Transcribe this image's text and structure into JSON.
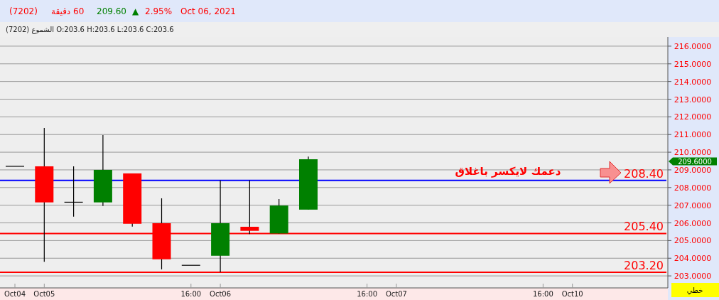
{
  "chart_data": {
    "type": "candlestick",
    "title": [
      "(7202)",
      "60 دقيقة",
      "209.60",
      "▲",
      "2.95%",
      "Oct 06, 2021"
    ],
    "subtitle": "الشموع (7202) O:203.6  H:203.6  L:203.6  C:203.6",
    "categories": [
      "Oct04",
      "Oct05",
      null,
      null,
      null,
      null,
      "16:00",
      "Oct06",
      null,
      null,
      null,
      null,
      "16:00",
      "Oct07",
      null,
      null,
      null,
      null,
      "16:00",
      "Oct10",
      null,
      null,
      null
    ],
    "ohlc": [
      [
        209.2,
        209.2,
        209.2,
        209.2
      ],
      [
        209.2,
        211.37,
        203.8,
        207.16
      ],
      [
        207.17,
        209.2,
        206.35,
        207.17
      ],
      [
        207.16,
        210.97,
        206.96,
        209.0
      ],
      [
        208.8,
        208.8,
        205.79,
        205.95
      ],
      [
        205.98,
        207.39,
        203.37,
        203.94
      ],
      [
        203.6,
        203.6,
        203.6,
        203.6
      ],
      [
        204.14,
        208.4,
        203.2,
        205.98
      ],
      [
        205.78,
        208.4,
        205.37,
        205.55
      ],
      [
        205.4,
        207.35,
        205.4,
        206.98
      ],
      [
        206.75,
        209.75,
        206.75,
        209.6
      ],
      null,
      null,
      null,
      null,
      null,
      null,
      null,
      null,
      null,
      null,
      null,
      null
    ],
    "colors": [
      "#000000",
      "#ff0000",
      "#000000",
      "#008000",
      "#ff0000",
      "#ff0000",
      "#000000",
      "#008000",
      "#ff0000",
      "#008000",
      "#008000",
      null,
      null,
      null,
      null,
      null,
      null,
      null,
      null,
      null,
      null,
      null,
      null
    ],
    "ylim": [
      202.32,
      216.52
    ],
    "yticks": [
      {
        "value": 203,
        "label": "203.0000"
      },
      {
        "value": 204,
        "label": "204.0000"
      },
      {
        "value": 205,
        "label": "205.0000"
      },
      {
        "value": 206,
        "label": "206.0000"
      },
      {
        "value": 207,
        "label": "207.0000"
      },
      {
        "value": 208,
        "label": "208.0000"
      },
      {
        "value": 209,
        "label": "209.0000"
      },
      {
        "value": 210,
        "label": "210.0000"
      },
      {
        "value": 211,
        "label": "211.0000"
      },
      {
        "value": 212,
        "label": "212.0000"
      },
      {
        "value": 213,
        "label": "213.0000"
      },
      {
        "value": 214,
        "label": "214.0000"
      },
      {
        "value": 215,
        "label": "215.0000"
      },
      {
        "value": 216,
        "label": "216.0000"
      }
    ],
    "grid": "y",
    "ref_lines": [
      {
        "axis": "y",
        "value": 208.4,
        "label": "208.40",
        "color": "#0000ff"
      },
      {
        "axis": "y",
        "value": 205.4,
        "label": "205.40",
        "color": "#ff0000"
      },
      {
        "axis": "y",
        "value": 203.2,
        "label": "203.20",
        "color": "#ff0000"
      }
    ],
    "annotations": [
      {
        "text": "دعمك لايكسر باغلاق",
        "y": 208.4
      },
      "209.6000",
      "خطي"
    ]
  }
}
